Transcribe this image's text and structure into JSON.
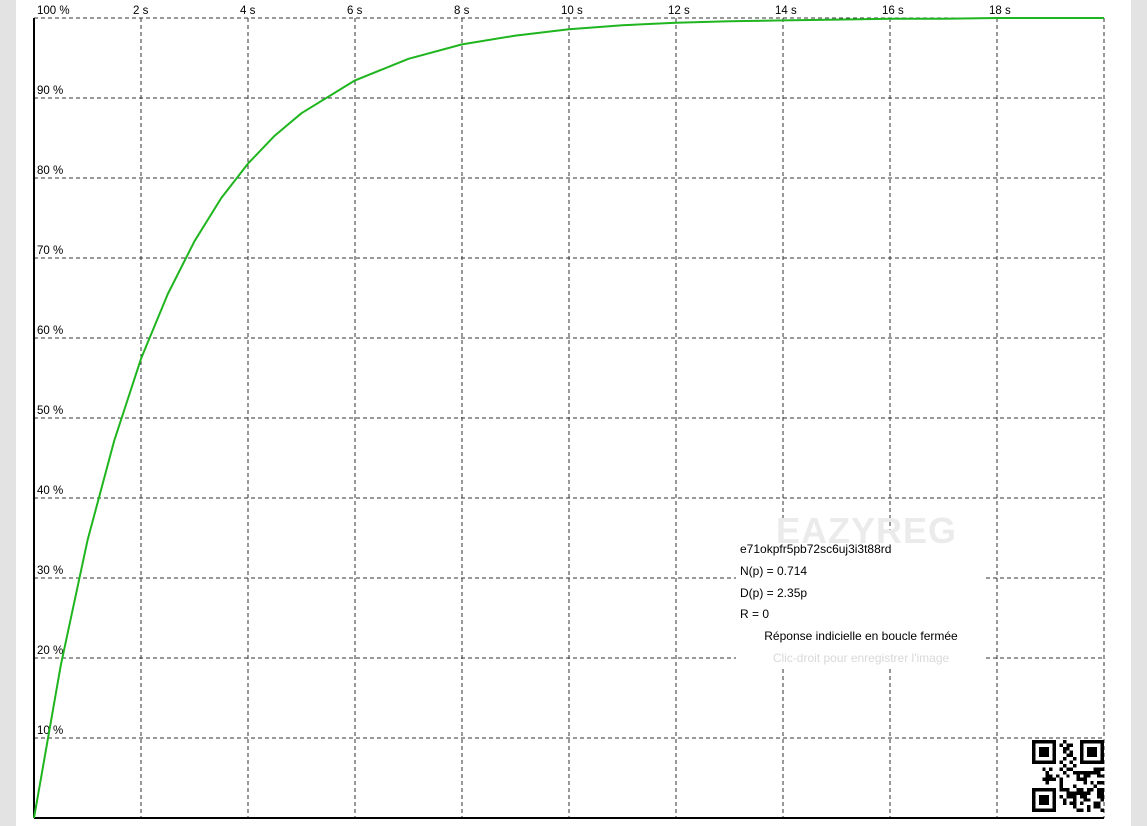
{
  "chart_data": {
    "type": "line",
    "x_tick_labels": [
      "2 s",
      "4 s",
      "6 s",
      "8 s",
      "10 s",
      "12 s",
      "14 s",
      "16 s",
      "18 s"
    ],
    "y_tick_labels": [
      "10 %",
      "20 %",
      "30 %",
      "40 %",
      "50 %",
      "60 %",
      "70 %",
      "80 %",
      "90 %",
      "100 %"
    ],
    "xlim": [
      0,
      20
    ],
    "ylim": [
      0,
      100
    ],
    "grid": true,
    "series": [
      {
        "color": "#1fb51f",
        "x": [
          0,
          0.5,
          1,
          1.5,
          2,
          2.5,
          3,
          3.5,
          4,
          4.5,
          5,
          6,
          7,
          8,
          9,
          10,
          11,
          12,
          13,
          14,
          15,
          16,
          17,
          18,
          19,
          20
        ],
        "y": [
          0,
          19.1,
          34.7,
          47.2,
          57.4,
          65.5,
          72.1,
          77.5,
          81.8,
          85.3,
          88.1,
          92.2,
          94.9,
          96.7,
          97.8,
          98.6,
          99.1,
          99.4,
          99.6,
          99.7,
          99.8,
          99.9,
          99.9,
          100,
          100,
          100
        ]
      }
    ]
  },
  "info": {
    "watermark": "EAZYREG",
    "id": "e71okpfr5pb72sc6uj3i3t88rd",
    "numerator": "N(p) = 0.714",
    "denominator": "D(p) = 2.35p",
    "r": "R = 0",
    "caption": "Réponse indicielle en boucle fermée",
    "hint": "Clic-droit pour enregistrer l'image"
  }
}
